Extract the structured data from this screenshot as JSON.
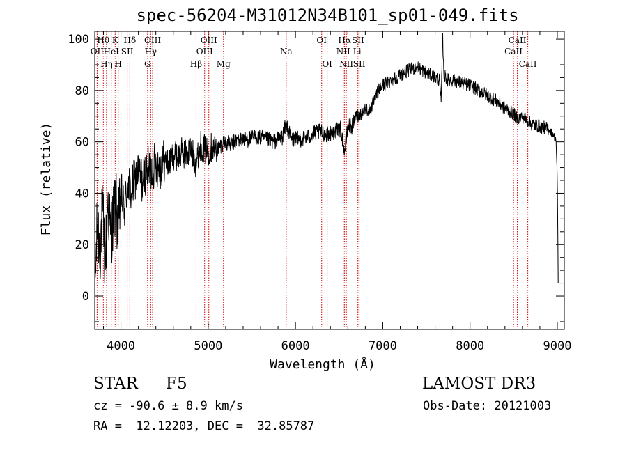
{
  "header": {
    "title": "spec-56204-M31012N34B101_sp01-049.fits"
  },
  "chart_data": {
    "type": "line",
    "title": "spec-56204-M31012N34B101_sp01-049.fits",
    "xlabel": "Wavelength (Å)",
    "ylabel": "Flux (relative)",
    "xlim": [
      3700,
      9080
    ],
    "ylim": [
      -13,
      103
    ],
    "xticks": [
      4000,
      5000,
      6000,
      7000,
      8000,
      9000
    ],
    "yticks": [
      0,
      20,
      40,
      60,
      80,
      100
    ],
    "xtick_labels": [
      "4000",
      "5000",
      "6000",
      "7000",
      "8000",
      "9000"
    ],
    "ytick_labels": [
      "0",
      "20",
      "40",
      "60",
      "80",
      "100"
    ],
    "grid": false,
    "series": [
      {
        "name": "flux",
        "color": "#000000",
        "x": [
          3700,
          3730,
          3760,
          3790,
          3820,
          3850,
          3880,
          3910,
          3940,
          3970,
          4000,
          4040,
          4080,
          4120,
          4160,
          4200,
          4250,
          4300,
          4340,
          4400,
          4450,
          4500,
          4550,
          4600,
          4650,
          4700,
          4750,
          4800,
          4860,
          4920,
          4980,
          5040,
          5100,
          5180,
          5250,
          5350,
          5450,
          5550,
          5650,
          5750,
          5850,
          5895,
          5950,
          6050,
          6150,
          6250,
          6350,
          6450,
          6520,
          6563,
          6600,
          6650,
          6700,
          6750,
          6800,
          6850,
          6900,
          6950,
          7000,
          7100,
          7200,
          7300,
          7400,
          7500,
          7600,
          7650,
          7670,
          7685,
          7700,
          7750,
          7800,
          7900,
          8000,
          8100,
          8200,
          8300,
          8400,
          8498,
          8542,
          8600,
          8662,
          8700,
          8800,
          8900,
          8950,
          8985,
          9000,
          9010
        ],
        "values": [
          2,
          28,
          18,
          33,
          12,
          38,
          24,
          30,
          36,
          26,
          40,
          34,
          44,
          40,
          46,
          48,
          44,
          50,
          48,
          52,
          50,
          53,
          51,
          55,
          54,
          56,
          55,
          57,
          52,
          59,
          56,
          58,
          57,
          60,
          59,
          61,
          61,
          62,
          61,
          60,
          62,
          67,
          61,
          61,
          62,
          64,
          63,
          64,
          65,
          56,
          66,
          66,
          70,
          71,
          73,
          72,
          76,
          80,
          82,
          84,
          86,
          88,
          89,
          87,
          85,
          84,
          75,
          102,
          86,
          84,
          84,
          83,
          82,
          80,
          78,
          76,
          73,
          71,
          69,
          70,
          68,
          67,
          66,
          65,
          63,
          61,
          45,
          5
        ]
      }
    ],
    "line_marks": [
      {
        "name": "OII",
        "label": "OII",
        "x": 3727,
        "row": 2
      },
      {
        "name": "H-theta",
        "label": "Hθ",
        "x": 3798,
        "row": 1
      },
      {
        "name": "H-eta",
        "label": "Hη",
        "x": 3835,
        "row": 3
      },
      {
        "name": "HeI",
        "label": "HeI",
        "x": 3889,
        "row": 2
      },
      {
        "name": "K",
        "label": "K",
        "x": 3934,
        "row": 1
      },
      {
        "name": "H",
        "label": "H",
        "x": 3969,
        "row": 3
      },
      {
        "name": "SII-4072",
        "label": "SII",
        "x": 4072,
        "row": 2
      },
      {
        "name": "H-delta",
        "label": "Hδ",
        "x": 4102,
        "row": 1
      },
      {
        "name": "G",
        "label": "G",
        "x": 4305,
        "row": 3
      },
      {
        "name": "H-gamma",
        "label": "Hγ",
        "x": 4341,
        "row": 2
      },
      {
        "name": "OIII-4363",
        "label": "OIII",
        "x": 4363,
        "row": 1
      },
      {
        "name": "H-beta",
        "label": "Hβ",
        "x": 4861,
        "row": 3
      },
      {
        "name": "OIII-4959",
        "label": "OIII",
        "x": 4959,
        "row": 2
      },
      {
        "name": "OIII-5007",
        "label": "OIII",
        "x": 5007,
        "row": 1
      },
      {
        "name": "Mg",
        "label": "Mg",
        "x": 5175,
        "row": 3
      },
      {
        "name": "Na",
        "label": "Na",
        "x": 5894,
        "row": 2
      },
      {
        "name": "OI-6300",
        "label": "OI",
        "x": 6300,
        "row": 1
      },
      {
        "name": "OI-6363",
        "label": "OI",
        "x": 6363,
        "row": 3
      },
      {
        "name": "NII-6548",
        "label": "NII",
        "x": 6548,
        "row": 2
      },
      {
        "name": "H-alpha",
        "label": "Hα",
        "x": 6563,
        "row": 1
      },
      {
        "name": "NII-6583",
        "label": "NII",
        "x": 6583,
        "row": 3
      },
      {
        "name": "Li",
        "label": "Li",
        "x": 6707,
        "row": 2
      },
      {
        "name": "SII-6716",
        "label": "SII",
        "x": 6716,
        "row": 1
      },
      {
        "name": "SII-6730",
        "label": "SII",
        "x": 6730,
        "row": 3
      },
      {
        "name": "CaII-8498",
        "label": "CaII",
        "x": 8498,
        "row": 2
      },
      {
        "name": "CaII-8542",
        "label": "CaII",
        "x": 8542,
        "row": 1
      },
      {
        "name": "CaII-8662",
        "label": "CaII",
        "x": 8662,
        "row": 3
      }
    ],
    "line_mark_color": "#cc0000"
  },
  "info": {
    "object_type": "STAR",
    "object_class": "F5",
    "survey": "LAMOST DR3",
    "cz": "cz = -90.6 ± 8.9 km/s",
    "obs_date": "Obs-Date: 20121003",
    "radec": "RA =  12.12203, DEC =  32.85787"
  }
}
